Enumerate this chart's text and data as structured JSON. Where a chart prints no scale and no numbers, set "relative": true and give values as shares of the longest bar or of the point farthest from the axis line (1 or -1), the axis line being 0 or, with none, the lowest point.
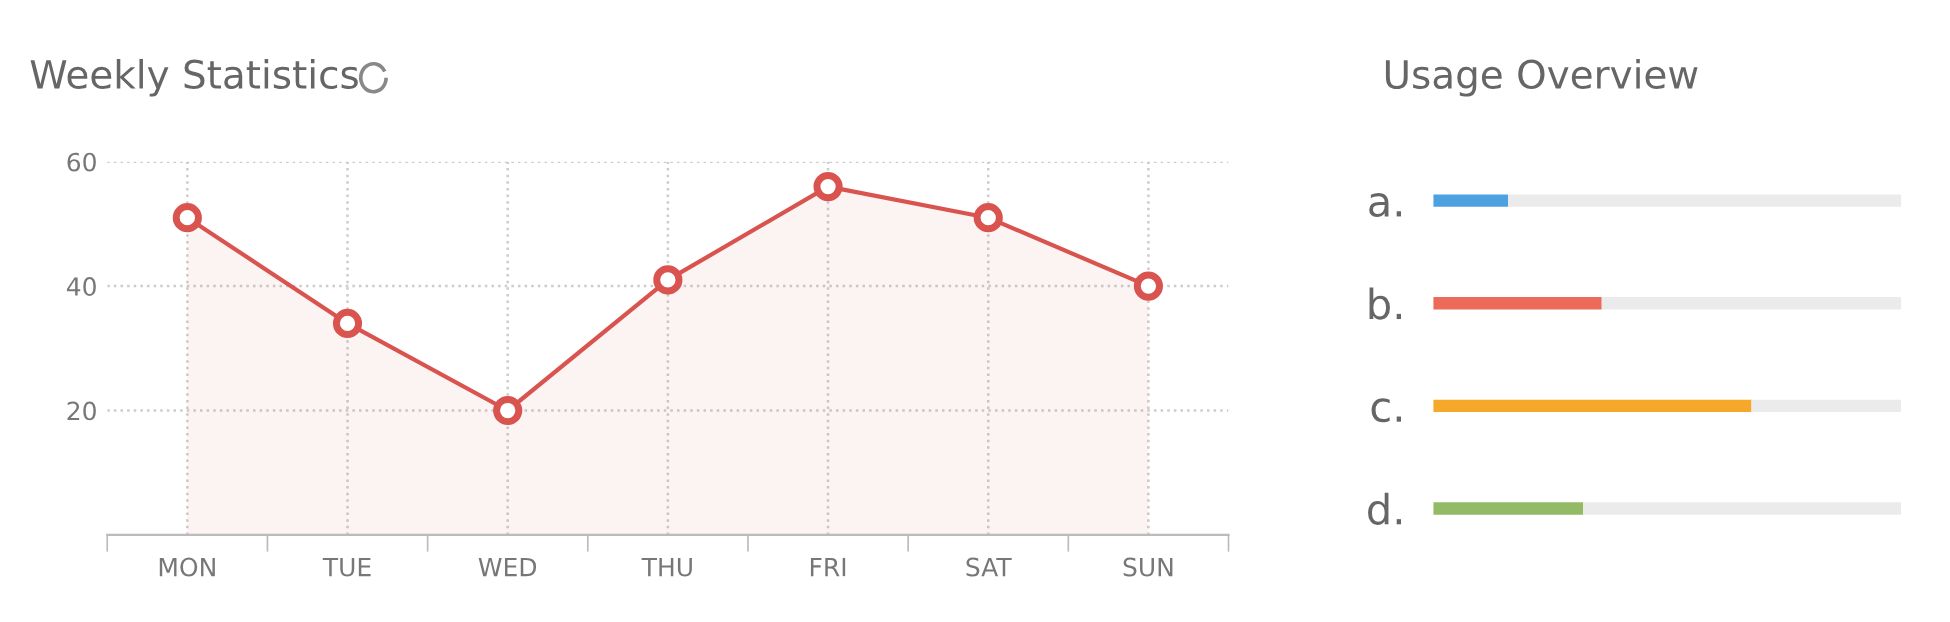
{
  "chart_data": [
    {
      "type": "area",
      "title": "Weekly Statistics",
      "categories": [
        "MON",
        "TUE",
        "WED",
        "THU",
        "FRI",
        "SAT",
        "SUN"
      ],
      "series": [
        {
          "color": "#d9534f",
          "values": [
            51,
            34,
            20,
            41,
            56,
            51,
            40
          ]
        }
      ],
      "ylim": [
        0,
        60
      ],
      "yticks": [
        20,
        40,
        60
      ],
      "grid": true,
      "marker": "circle",
      "line_style": "solid",
      "legend": false
    },
    {
      "type": "bar",
      "title": "Usage Overview",
      "orientation": "horizontal",
      "stacked": true,
      "relative": true,
      "categories": [
        "a.",
        "b.",
        "c.",
        "d."
      ],
      "series": [
        {
          "colors": [
            "#4ea1e0",
            "#ec6a5a",
            "#f6a82b",
            "#93bb65"
          ],
          "values": [
            0.16,
            0.36,
            0.68,
            0.32
          ]
        },
        {
          "color": "#ebebeb",
          "values": [
            0.84,
            0.64,
            0.32,
            0.68
          ]
        }
      ],
      "grid": false,
      "legend": false
    }
  ]
}
